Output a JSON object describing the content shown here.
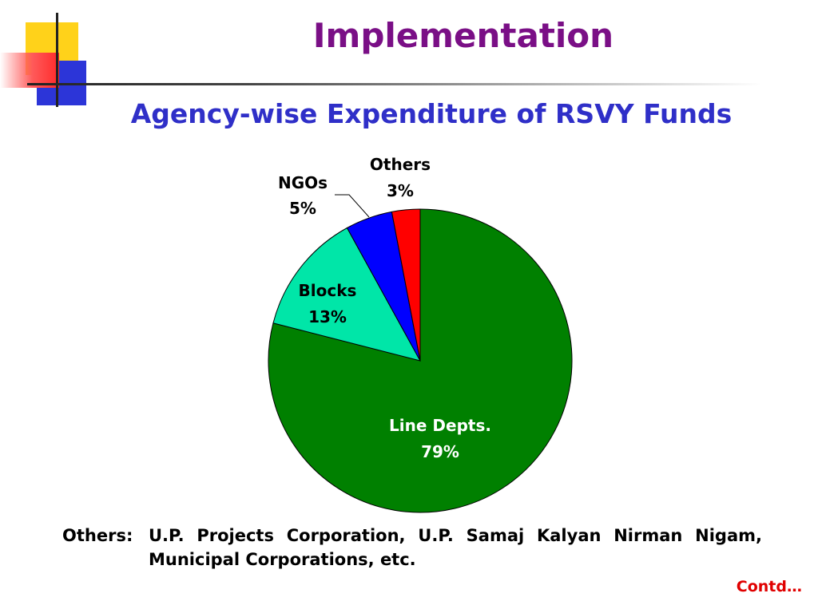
{
  "slide": {
    "title": "Implementation",
    "subtitle": "Agency-wise Expenditure of RSVY Funds",
    "note_label": "Others:",
    "note_text": "U.P. Projects Corporation, U.P. Samaj Kalyan Nirman Nigam, Municipal Corporations, etc.",
    "footer": "Contd…"
  },
  "colors": {
    "title": "#7a0f86",
    "subtitle": "#2f2fc8",
    "footer": "#e00000"
  },
  "chart_data": {
    "type": "pie",
    "title": "Agency-wise Expenditure of RSVY Funds",
    "start_angle_deg": 0,
    "direction": "clockwise",
    "legend": "none",
    "slices": [
      {
        "label": "Line Depts.",
        "value": 79,
        "value_label": "79%",
        "color": "#008000",
        "label_color": "#ffffff"
      },
      {
        "label": "Blocks",
        "value": 13,
        "value_label": "13%",
        "color": "#00e6a8",
        "label_color": "#000000"
      },
      {
        "label": "NGOs",
        "value": 5,
        "value_label": "5%",
        "color": "#0000ff",
        "label_color": "#000000"
      },
      {
        "label": "Others",
        "value": 3,
        "value_label": "3%",
        "color": "#ff0000",
        "label_color": "#000000"
      }
    ]
  }
}
